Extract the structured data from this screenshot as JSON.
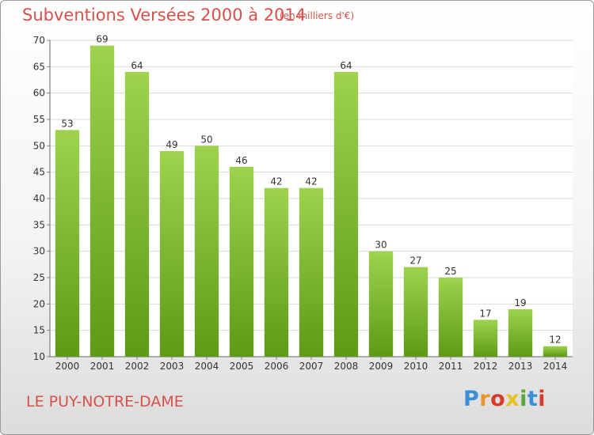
{
  "header": {
    "title": "Subventions Versées 2000 à 2014",
    "unit": "(en milliers d'€)"
  },
  "footer": {
    "commune": "LE PUY-NOTRE-DAME",
    "logo_text": "Proxiti",
    "logo_colors": [
      "#3a8fd6",
      "#e8952a",
      "#d33b2b",
      "#e8c21f",
      "#58a83a",
      "#3a8fd6",
      "#d33b2b"
    ]
  },
  "colors": {
    "bar_top": "#9ed24f",
    "bar_bottom": "#5d9a16",
    "grid": "#d9d9d9",
    "title": "#d4524a"
  },
  "chart_data": {
    "type": "bar",
    "categories": [
      "2000",
      "2001",
      "2002",
      "2003",
      "2004",
      "2005",
      "2006",
      "2007",
      "2008",
      "2009",
      "2010",
      "2011",
      "2012",
      "2013",
      "2014"
    ],
    "values": [
      53,
      69,
      64,
      49,
      50,
      46,
      42,
      42,
      64,
      30,
      27,
      25,
      17,
      19,
      12
    ],
    "title": "Subventions Versées 2000 à 2014",
    "ylim": [
      10,
      70
    ],
    "yticks": [
      10,
      15,
      20,
      25,
      30,
      35,
      40,
      45,
      50,
      55,
      60,
      65,
      70
    ],
    "grid": true
  }
}
